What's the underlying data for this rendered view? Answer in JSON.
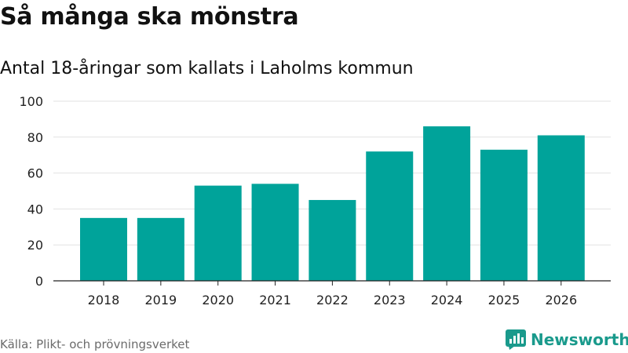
{
  "header": {
    "title": "Så många ska mönstra",
    "subtitle": "Antal 18-åringar som kallats i Laholms kommun"
  },
  "footer": {
    "source": "Källa: Plikt- och prövningsverket",
    "brand": "Newsworthy"
  },
  "colors": {
    "bar": "#00a39a",
    "brand": "#1a9a8c",
    "grid": "#e2e2e2",
    "axis": "#222222"
  },
  "chart_data": {
    "type": "bar",
    "title": "Så många ska mönstra",
    "subtitle": "Antal 18-åringar som kallats i Laholms kommun",
    "xlabel": "",
    "ylabel": "",
    "categories": [
      "2018",
      "2019",
      "2020",
      "2021",
      "2022",
      "2023",
      "2024",
      "2025",
      "2026"
    ],
    "values": [
      35,
      35,
      53,
      54,
      45,
      72,
      86,
      73,
      81
    ],
    "ylim": [
      0,
      100
    ],
    "yticks": [
      0,
      20,
      40,
      60,
      80,
      100
    ],
    "grid": true,
    "legend": "none"
  }
}
